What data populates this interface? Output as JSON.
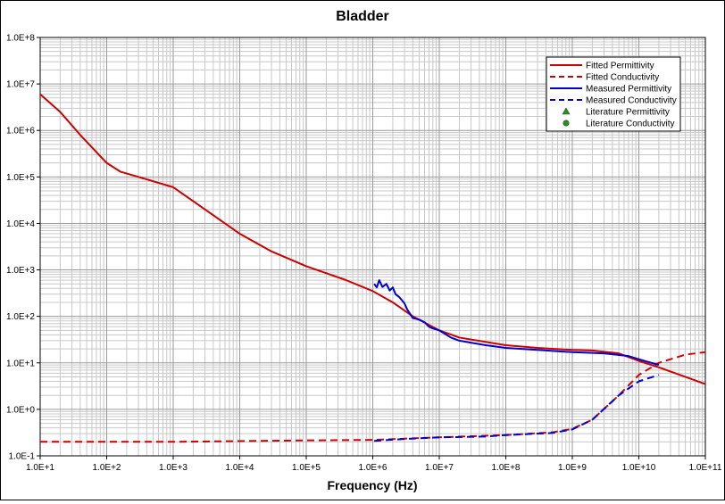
{
  "chart_data": {
    "type": "line",
    "title": "Bladder",
    "xlabel": "Frequency (Hz)",
    "ylabel": "",
    "xscale": "log",
    "yscale": "log",
    "xlim": [
      10,
      100000000000
    ],
    "ylim": [
      0.1,
      100000000
    ],
    "grid": true,
    "legend_position": "top-right",
    "x_tick_labels": [
      "1.0E+1",
      "1.0E+2",
      "1.0E+3",
      "1.0E+4",
      "1.0E+5",
      "1.0E+6",
      "1.0E+7",
      "1.0E+8",
      "1.0E+9",
      "1.0E+10",
      "1.0E+11"
    ],
    "y_tick_labels": [
      "1.0E-1",
      "1.0E+0",
      "1.0E+1",
      "1.0E+2",
      "1.0E+3",
      "1.0E+4",
      "1.0E+5",
      "1.0E+6",
      "1.0E+7",
      "1.0E+8"
    ],
    "series": [
      {
        "name": "Fitted Permittivity",
        "color": "#cc0000",
        "style": "solid",
        "marker": "none",
        "points": [
          [
            10,
            6000000
          ],
          [
            20,
            2500000
          ],
          [
            40,
            800000
          ],
          [
            100,
            200000
          ],
          [
            160,
            130000
          ],
          [
            300,
            100000
          ],
          [
            1000,
            60000
          ],
          [
            2000,
            30000
          ],
          [
            5000,
            12000
          ],
          [
            10000,
            6000
          ],
          [
            30000,
            2500
          ],
          [
            100000,
            1200
          ],
          [
            400000,
            600
          ],
          [
            1000000,
            350
          ],
          [
            2000000,
            200
          ],
          [
            4000000,
            100
          ],
          [
            10000000,
            50
          ],
          [
            20000000,
            35
          ],
          [
            100000000,
            24
          ],
          [
            300000000,
            21
          ],
          [
            1000000000,
            19
          ],
          [
            2000000000,
            18.5
          ],
          [
            5000000000,
            16
          ],
          [
            10000000000,
            11
          ],
          [
            20000000000,
            8
          ],
          [
            50000000000,
            5
          ],
          [
            100000000000,
            3.5
          ]
        ]
      },
      {
        "name": "Fitted Conductivity",
        "color": "#cc0000",
        "style": "dashed",
        "marker": "none",
        "points": [
          [
            10,
            0.2
          ],
          [
            1000,
            0.2
          ],
          [
            100000,
            0.215
          ],
          [
            1000000,
            0.22
          ],
          [
            10000000,
            0.25
          ],
          [
            100000000,
            0.28
          ],
          [
            500000000,
            0.32
          ],
          [
            1000000000,
            0.38
          ],
          [
            2000000000,
            0.6
          ],
          [
            5000000000,
            2.0
          ],
          [
            10000000000,
            5.5
          ],
          [
            20000000000,
            10
          ],
          [
            50000000000,
            15
          ],
          [
            100000000000,
            17
          ]
        ]
      },
      {
        "name": "Measured Permittivity",
        "color": "#0000cc",
        "style": "solid",
        "marker": "none",
        "points": [
          [
            1050000,
            500
          ],
          [
            1150000,
            420
          ],
          [
            1250000,
            600
          ],
          [
            1400000,
            430
          ],
          [
            1600000,
            500
          ],
          [
            1800000,
            360
          ],
          [
            2000000,
            420
          ],
          [
            2200000,
            300
          ],
          [
            2500000,
            260
          ],
          [
            3000000,
            190
          ],
          [
            3300000,
            140
          ],
          [
            3700000,
            110
          ],
          [
            4000000,
            92
          ],
          [
            5000000,
            85
          ],
          [
            6000000,
            75
          ],
          [
            7000000,
            60
          ],
          [
            8000000,
            55
          ],
          [
            10000000,
            50
          ],
          [
            15000000,
            35
          ],
          [
            20000000,
            30
          ],
          [
            50000000,
            24
          ],
          [
            100000000,
            21
          ],
          [
            300000000,
            19
          ],
          [
            1000000000,
            17
          ],
          [
            3000000000,
            16
          ],
          [
            7000000000,
            14
          ],
          [
            10000000000,
            12
          ],
          [
            20000000000,
            9
          ]
        ]
      },
      {
        "name": "Measured Conductivity",
        "color": "#0000cc",
        "style": "dashed",
        "marker": "none",
        "points": [
          [
            1050000,
            0.21
          ],
          [
            3000000,
            0.23
          ],
          [
            10000000,
            0.25
          ],
          [
            50000000,
            0.26
          ],
          [
            100000000,
            0.28
          ],
          [
            500000000,
            0.31
          ],
          [
            1000000000,
            0.37
          ],
          [
            2000000000,
            0.6
          ],
          [
            5000000000,
            2.0
          ],
          [
            10000000000,
            4.0
          ],
          [
            20000000000,
            5.5
          ]
        ]
      },
      {
        "name": "Literature Permittivity",
        "color": "#2e8b2e",
        "style": "none",
        "marker": "triangle",
        "points": []
      },
      {
        "name": "Literature Conductivity",
        "color": "#2e8b2e",
        "style": "none",
        "marker": "circle",
        "points": []
      }
    ]
  }
}
